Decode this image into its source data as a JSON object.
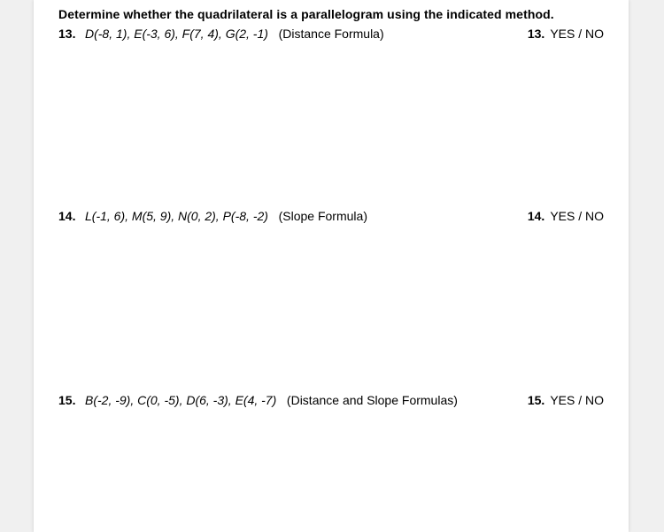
{
  "header": "Determine whether the quadrilateral is a parallelogram using the indicated method.",
  "questions": [
    {
      "num": "13.",
      "points": "D(-8, 1), E(-3, 6), F(7, 4), G(2, -1)",
      "method": "(Distance Formula)",
      "answer_num": "13.",
      "answer_text": "YES  /  NO"
    },
    {
      "num": "14.",
      "points": "L(-1, 6), M(5, 9), N(0, 2), P(-8, -2)",
      "method": "(Slope Formula)",
      "answer_num": "14.",
      "answer_text": "YES  /  NO"
    },
    {
      "num": "15.",
      "points": "B(-2, -9), C(0, -5), D(6, -3), E(4, -7)",
      "method": "(Distance and Slope Formulas)",
      "answer_num": "15.",
      "answer_text": "YES  /  NO"
    }
  ]
}
